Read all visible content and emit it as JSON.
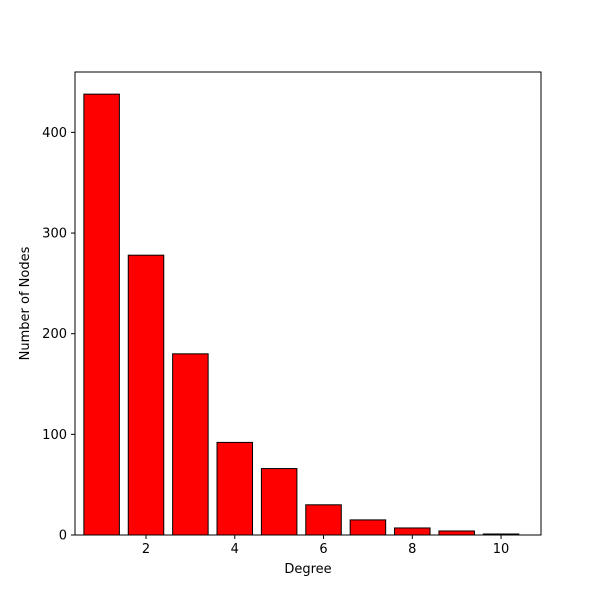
{
  "chart_data": {
    "type": "bar",
    "title": "",
    "xlabel": "Degree",
    "ylabel": "Number of Nodes",
    "categories": [
      1,
      2,
      3,
      4,
      5,
      6,
      7,
      8,
      9,
      10
    ],
    "values": [
      438,
      278,
      180,
      92,
      66,
      30,
      15,
      7,
      4,
      1
    ],
    "xlim": [
      0.4,
      10.9
    ],
    "ylim": [
      0,
      460
    ],
    "xticks": [
      2,
      4,
      6,
      8,
      10
    ],
    "yticks": [
      0,
      100,
      200,
      300,
      400
    ],
    "bar_color": "#ff0000",
    "edge_color": "#000000",
    "grid": false,
    "legend": "none"
  }
}
